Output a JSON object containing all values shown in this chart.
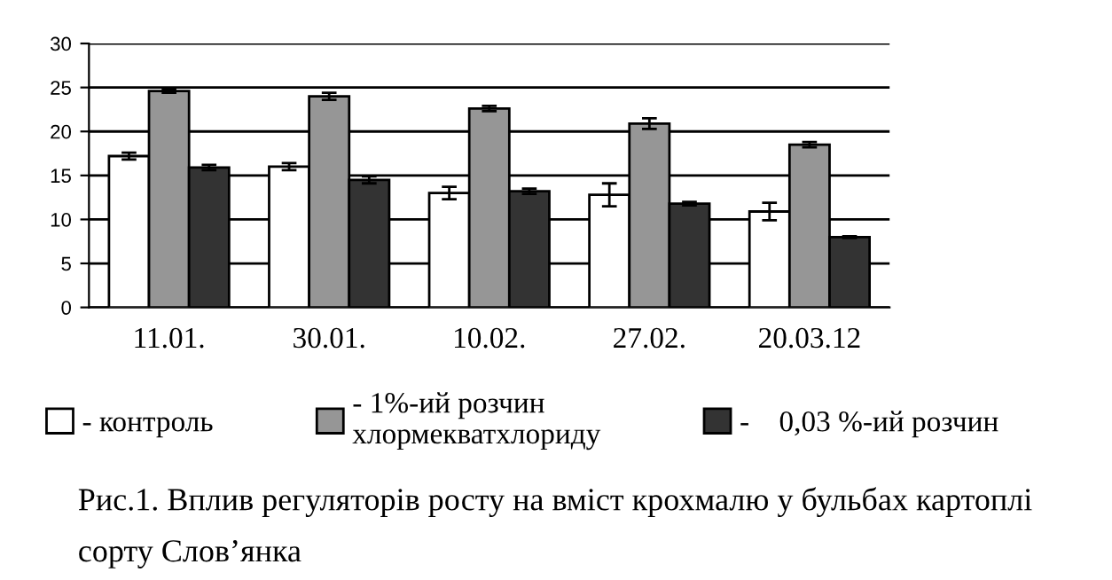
{
  "chart_data": {
    "type": "bar",
    "categories": [
      "11.01.",
      "30.01.",
      "10.02.",
      "27.02.",
      "20.03.12"
    ],
    "series": [
      {
        "name": "- контроль",
        "color": "#ffffff",
        "values": [
          17.2,
          16.0,
          13.0,
          12.8,
          10.9
        ],
        "errors": [
          0.4,
          0.4,
          0.7,
          1.3,
          1.0
        ]
      },
      {
        "name": "- 1%-ий розчин хлормекватхлориду",
        "color": "#969696",
        "values": [
          24.6,
          24.0,
          22.6,
          20.9,
          18.5
        ],
        "errors": [
          0.2,
          0.4,
          0.3,
          0.6,
          0.3
        ]
      },
      {
        "name": "-    0,03 %-ий розчин",
        "color": "#333333",
        "values": [
          15.9,
          14.5,
          13.2,
          11.8,
          8.0
        ],
        "errors": [
          0.3,
          0.4,
          0.3,
          0.2,
          0.1
        ]
      }
    ],
    "ylim": [
      0,
      30
    ],
    "yticks": [
      0,
      5,
      10,
      15,
      20,
      25,
      30
    ],
    "grid": "y",
    "legend": "bottom",
    "annotations": [
      "Рис.1. Вплив регуляторів росту на вміст крохмалю у бульбах картоплі сорту Слов’янка"
    ]
  }
}
